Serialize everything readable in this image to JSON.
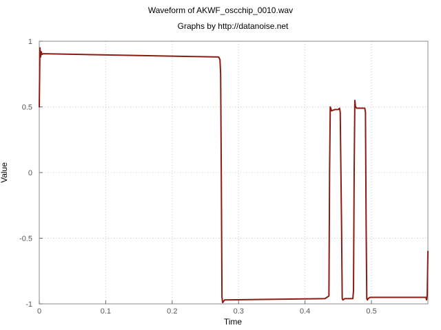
{
  "chart_data": {
    "type": "line",
    "title": "Waveform of AKWF_oscchip_0010.wav",
    "subtitle": "Graphs by http://datanoise.net",
    "xlabel": "Time",
    "ylabel": "Value",
    "xlim": [
      0,
      0.585
    ],
    "ylim": [
      -1,
      1
    ],
    "xticks": [
      {
        "value": 0,
        "label": "0"
      },
      {
        "value": 0.1,
        "label": "0.1"
      },
      {
        "value": 0.2,
        "label": "0.2"
      },
      {
        "value": 0.3,
        "label": "0.3"
      },
      {
        "value": 0.4,
        "label": "0.4"
      },
      {
        "value": 0.5,
        "label": "0.5"
      }
    ],
    "yticks": [
      {
        "value": -1,
        "label": "-1"
      },
      {
        "value": -0.5,
        "label": "-0.5"
      },
      {
        "value": 0,
        "label": "0"
      },
      {
        "value": 0.5,
        "label": "0.5"
      },
      {
        "value": 1,
        "label": "1"
      }
    ],
    "grid": true,
    "line_color": "#8b1a10",
    "series": [
      {
        "x": [
          0,
          0.001,
          0.002,
          0.003,
          0.004,
          0.006,
          0.27,
          0.272,
          0.273,
          0.274,
          0.275,
          0.276,
          0.279,
          0.43,
          0.436,
          0.437,
          0.438,
          0.44,
          0.445,
          0.45,
          0.452,
          0.453,
          0.455,
          0.456,
          0.457,
          0.46,
          0.472,
          0.473,
          0.474,
          0.475,
          0.476,
          0.478,
          0.49,
          0.491,
          0.492,
          0.493,
          0.494,
          0.495,
          0.498,
          0.582,
          0.583,
          0.584,
          0.585
        ],
        "y": [
          0.5,
          0.95,
          0.88,
          0.92,
          0.9,
          0.905,
          0.88,
          0.86,
          0.75,
          0.0,
          -0.95,
          -0.99,
          -0.97,
          -0.96,
          -0.94,
          0.0,
          0.5,
          0.47,
          0.48,
          0.48,
          0.49,
          0.46,
          -0.4,
          -0.96,
          -0.97,
          -0.96,
          -0.96,
          -0.9,
          0.0,
          0.55,
          0.5,
          0.49,
          0.49,
          0.46,
          -0.4,
          -0.96,
          -0.97,
          -0.96,
          -0.95,
          -0.95,
          -0.97,
          -0.93,
          -0.6
        ]
      }
    ]
  }
}
